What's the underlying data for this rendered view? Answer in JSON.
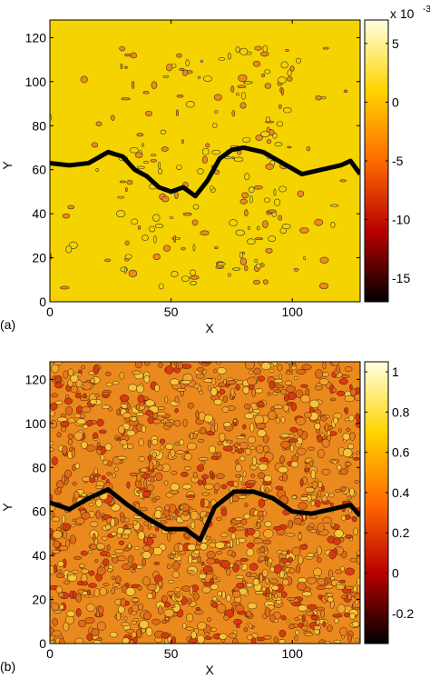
{
  "chart_data": [
    {
      "type": "contour",
      "panel_label": "(a)",
      "xlabel": "X",
      "ylabel": "Y",
      "xlim": [
        0,
        128
      ],
      "ylim": [
        0,
        128
      ],
      "xticks": [
        0,
        50,
        100
      ],
      "yticks": [
        0,
        20,
        40,
        60,
        80,
        100,
        120
      ],
      "background": "#f5d300",
      "colormap": [
        "#000000",
        "#b80000",
        "#ff6a00",
        "#ffd400",
        "#ffffe0"
      ],
      "clim": [
        -17,
        7
      ],
      "cticks": [
        -15,
        -10,
        -5,
        0,
        5
      ],
      "colorbar_scale": "x 10",
      "colorbar_scale_exp": "-3",
      "series": [
        {
          "color": "#000000",
          "x": [
            0,
            8,
            16,
            24,
            30,
            35,
            40,
            45,
            50,
            55,
            60,
            65,
            70,
            75,
            80,
            88,
            96,
            104,
            112,
            120,
            124,
            128
          ],
          "values": [
            63,
            62,
            63,
            68,
            66,
            60,
            57,
            52,
            50,
            52,
            48,
            55,
            65,
            69,
            70,
            68,
            63,
            58,
            60,
            62,
            64,
            58
          ]
        }
      ]
    },
    {
      "type": "contour",
      "panel_label": "(b)",
      "xlabel": "X",
      "ylabel": "Y",
      "xlim": [
        0,
        128
      ],
      "ylim": [
        0,
        128
      ],
      "xticks": [
        0,
        50,
        100
      ],
      "yticks": [
        0,
        20,
        40,
        60,
        80,
        100,
        120
      ],
      "background": "#ea8a1e",
      "colormap": [
        "#000000",
        "#b80000",
        "#ff6a00",
        "#ffd400",
        "#ffffe0"
      ],
      "clim": [
        -0.35,
        1.05
      ],
      "cticks": [
        -0.2,
        0,
        0.2,
        0.4,
        0.6,
        0.8,
        1
      ],
      "series": [
        {
          "color": "#000000",
          "x": [
            0,
            8,
            16,
            24,
            32,
            40,
            48,
            56,
            62,
            68,
            76,
            84,
            92,
            100,
            108,
            116,
            124,
            128
          ],
          "values": [
            64,
            61,
            66,
            70,
            63,
            57,
            52,
            52,
            47,
            62,
            69,
            69,
            66,
            60,
            59,
            61,
            63,
            58
          ]
        }
      ]
    }
  ]
}
